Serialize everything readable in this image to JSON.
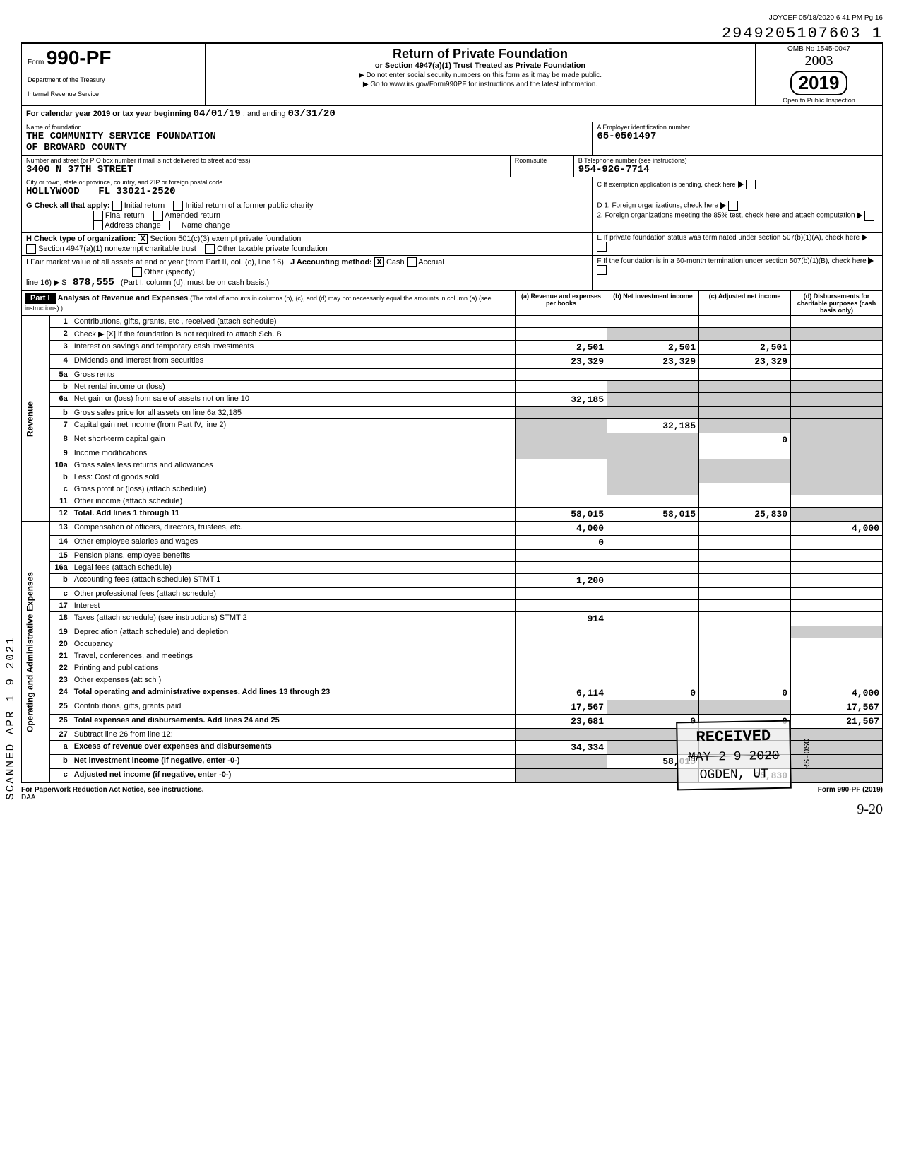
{
  "meta": {
    "top_right": "JOYCEF 05/18/2020 6 41 PM Pg 16",
    "stamp_number": "2949205107603 1",
    "omb": "OMB No 1545-0047",
    "hand_year": "2003",
    "form_year": "2019",
    "open_inspection": "Open to Public Inspection",
    "side_stamp": "SCANNED APR 1 9 2021"
  },
  "header": {
    "form_prefix": "Form",
    "form_number": "990-PF",
    "dept1": "Department of the Treasury",
    "dept2": "Internal Revenue Service",
    "title": "Return of Private Foundation",
    "subtitle": "or Section 4947(a)(1) Trust Treated as Private Foundation",
    "note1": "Do not enter social security numbers on this form as it may be made public.",
    "note2": "Go to www.irs.gov/Form990PF for instructions and the latest information."
  },
  "calendar": {
    "prefix": "For calendar year 2019 or tax year beginning",
    "begin": "04/01/19",
    "mid": ", and ending",
    "end": "03/31/20"
  },
  "foundation": {
    "name_label": "Name of foundation",
    "name1": "THE COMMUNITY SERVICE FOUNDATION",
    "name2": "OF BROWARD COUNTY",
    "addr_label": "Number and street (or P O box number if mail is not delivered to street address)",
    "street": "3400 N 37TH STREET",
    "city_label": "City or town, state or province, country, and ZIP or foreign postal code",
    "city": "HOLLYWOOD",
    "zip": "FL 33021-2520",
    "room_label": "Room/suite",
    "ein_label": "A   Employer identification number",
    "ein": "65-0501497",
    "phone_label": "B   Telephone number (see instructions)",
    "phone": "954-926-7714",
    "c_label": "C   If exemption application is pending, check here"
  },
  "g_h_i": {
    "g_label": "G  Check all that apply:",
    "g_opts": [
      "Initial return",
      "Initial return of a former public charity",
      "Final return",
      "Amended return",
      "Address change",
      "Name change"
    ],
    "d1": "D   1.  Foreign organizations, check here",
    "d2": "2.  Foreign organizations meeting the 85% test, check here and attach computation",
    "h_label": "H  Check type of organization:",
    "h1": "Section 501(c)(3) exempt private foundation",
    "h2": "Section 4947(a)(1) nonexempt charitable trust",
    "h3": "Other taxable private foundation",
    "e_label": "E   If private foundation status was terminated under section 507(b)(1)(A), check here",
    "i_label": "I   Fair market value of all assets at end of year (from Part II, col. (c), line 16)",
    "j_label": "J   Accounting method:",
    "j_cash": "Cash",
    "j_accrual": "Accrual",
    "j_other": "Other (specify)",
    "f_label": "F   If the foundation is in a 60-month termination under section 507(b)(1)(B), check here",
    "fmv": "878,555",
    "part1_note": "(Part I, column (d), must be on cash basis.)"
  },
  "part1": {
    "label": "Part I",
    "title": "Analysis of Revenue and Expenses",
    "title_note": "(The total of amounts in columns (b), (c), and (d) may not necessarily equal the amounts in column (a) (see instructions) )",
    "col_a": "(a) Revenue and expenses per books",
    "col_b": "(b) Net investment income",
    "col_c": "(c) Adjusted net income",
    "col_d": "(d) Disbursements for charitable purposes (cash basis only)"
  },
  "revenue_label": "Revenue",
  "expenses_label": "Operating and Administrative Expenses",
  "lines": [
    {
      "no": "1",
      "desc": "Contributions, gifts, grants, etc , received (attach schedule)",
      "a": "",
      "b": "",
      "c": "",
      "d": ""
    },
    {
      "no": "2",
      "desc": "Check ▶ [X] if the foundation is not required to attach Sch. B",
      "a": "",
      "b": "",
      "c": "",
      "d": "",
      "shade_bcd": true
    },
    {
      "no": "3",
      "desc": "Interest on savings and temporary cash investments",
      "a": "2,501",
      "b": "2,501",
      "c": "2,501",
      "d": ""
    },
    {
      "no": "4",
      "desc": "Dividends and interest from securities",
      "a": "23,329",
      "b": "23,329",
      "c": "23,329",
      "d": ""
    },
    {
      "no": "5a",
      "desc": "Gross rents",
      "a": "",
      "b": "",
      "c": "",
      "d": ""
    },
    {
      "no": "b",
      "desc": "Net rental income or (loss)",
      "a": "",
      "b": "",
      "c": "",
      "d": "",
      "shade_bcd": true
    },
    {
      "no": "6a",
      "desc": "Net gain or (loss) from sale of assets not on line 10",
      "a": "32,185",
      "b": "",
      "c": "",
      "d": "",
      "shade_bcd": true
    },
    {
      "no": "b",
      "desc": "Gross sales price for all assets on line 6a               32,185",
      "a": "",
      "b": "",
      "c": "",
      "d": "",
      "shade_all": true
    },
    {
      "no": "7",
      "desc": "Capital gain net income (from Part IV, line 2)",
      "a": "",
      "b": "32,185",
      "c": "",
      "d": "",
      "shade_acd": true
    },
    {
      "no": "8",
      "desc": "Net short-term capital gain",
      "a": "",
      "b": "",
      "c": "0",
      "d": "",
      "shade_abd": true
    },
    {
      "no": "9",
      "desc": "Income modifications",
      "a": "",
      "b": "",
      "c": "",
      "d": "",
      "shade_abd": true
    },
    {
      "no": "10a",
      "desc": "Gross sales less returns and allowances",
      "a": "",
      "b": "",
      "c": "",
      "d": "",
      "shade_bcd": true
    },
    {
      "no": "b",
      "desc": "Less: Cost of goods sold",
      "a": "",
      "b": "",
      "c": "",
      "d": "",
      "shade_bcd": true
    },
    {
      "no": "c",
      "desc": "Gross profit or (loss) (attach schedule)",
      "a": "",
      "b": "",
      "c": "",
      "d": "",
      "shade_bd": true
    },
    {
      "no": "11",
      "desc": "Other income (attach schedule)",
      "a": "",
      "b": "",
      "c": "",
      "d": ""
    },
    {
      "no": "12",
      "desc": "Total. Add lines 1 through 11",
      "a": "58,015",
      "b": "58,015",
      "c": "25,830",
      "d": "",
      "bold": true,
      "shade_d": true
    },
    {
      "no": "13",
      "desc": "Compensation of officers, directors, trustees, etc.",
      "a": "4,000",
      "b": "",
      "c": "",
      "d": "4,000"
    },
    {
      "no": "14",
      "desc": "Other employee salaries and wages",
      "a": "0",
      "b": "",
      "c": "",
      "d": ""
    },
    {
      "no": "15",
      "desc": "Pension plans, employee benefits",
      "a": "",
      "b": "",
      "c": "",
      "d": ""
    },
    {
      "no": "16a",
      "desc": "Legal fees (attach schedule)",
      "a": "",
      "b": "",
      "c": "",
      "d": ""
    },
    {
      "no": "b",
      "desc": "Accounting fees (attach schedule)        STMT 1",
      "a": "1,200",
      "b": "",
      "c": "",
      "d": ""
    },
    {
      "no": "c",
      "desc": "Other professional fees (attach schedule)",
      "a": "",
      "b": "",
      "c": "",
      "d": ""
    },
    {
      "no": "17",
      "desc": "Interest",
      "a": "",
      "b": "",
      "c": "",
      "d": ""
    },
    {
      "no": "18",
      "desc": "Taxes (attach schedule) (see instructions)    STMT 2",
      "a": "914",
      "b": "",
      "c": "",
      "d": ""
    },
    {
      "no": "19",
      "desc": "Depreciation (attach schedule) and depletion",
      "a": "",
      "b": "",
      "c": "",
      "d": "",
      "shade_d": true
    },
    {
      "no": "20",
      "desc": "Occupancy",
      "a": "",
      "b": "",
      "c": "",
      "d": ""
    },
    {
      "no": "21",
      "desc": "Travel, conferences, and meetings",
      "a": "",
      "b": "",
      "c": "",
      "d": ""
    },
    {
      "no": "22",
      "desc": "Printing and publications",
      "a": "",
      "b": "",
      "c": "",
      "d": ""
    },
    {
      "no": "23",
      "desc": "Other expenses (att sch )",
      "a": "",
      "b": "",
      "c": "",
      "d": ""
    },
    {
      "no": "24",
      "desc": "Total operating and administrative expenses. Add lines 13 through 23",
      "a": "6,114",
      "b": "0",
      "c": "0",
      "d": "4,000",
      "bold": true
    },
    {
      "no": "25",
      "desc": "Contributions, gifts, grants paid",
      "a": "17,567",
      "b": "",
      "c": "",
      "d": "17,567",
      "shade_bc": true
    },
    {
      "no": "26",
      "desc": "Total expenses and disbursements. Add lines 24 and 25",
      "a": "23,681",
      "b": "0",
      "c": "0",
      "d": "21,567",
      "bold": true
    },
    {
      "no": "27",
      "desc": "Subtract line 26 from line 12:",
      "a": "",
      "b": "",
      "c": "",
      "d": "",
      "shade_all": true
    },
    {
      "no": "a",
      "desc": "Excess of revenue over expenses and disbursements",
      "a": "34,334",
      "b": "",
      "c": "",
      "d": "",
      "shade_bcd": true,
      "bold": true
    },
    {
      "no": "b",
      "desc": "Net investment income (if negative, enter -0-)",
      "a": "",
      "b": "58,015",
      "c": "",
      "d": "",
      "shade_acd": true,
      "bold": true
    },
    {
      "no": "c",
      "desc": "Adjusted net income (if negative, enter -0-)",
      "a": "",
      "b": "",
      "c": "25,830",
      "d": "",
      "shade_abd": true,
      "bold": true
    }
  ],
  "received": {
    "line1": "RECEIVED",
    "line2": "MAY 2 9 2020",
    "line3": "OGDEN, UT",
    "side": "RS-OSC"
  },
  "footer": {
    "left": "For Paperwork Reduction Act Notice, see instructions.",
    "daa": "DAA",
    "right": "Form 990-PF (2019)",
    "hand": "9-20"
  }
}
